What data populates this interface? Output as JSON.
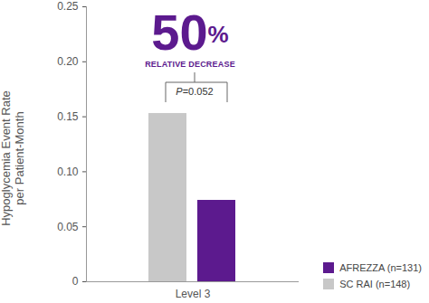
{
  "chart_data": {
    "type": "bar",
    "categories": [
      "Level 3"
    ],
    "series": [
      {
        "name": "SC RAI (n=148)",
        "color": "#c8c8c8",
        "values": [
          0.153
        ]
      },
      {
        "name": "AFREZZA (n=131)",
        "color": "#5c1a8e",
        "values": [
          0.074
        ]
      }
    ],
    "y_label": "Hypoglycemia Event Rate\nper Patient-Month",
    "ylim": [
      0,
      0.25
    ],
    "yticks": [
      0,
      0.05,
      {
        "value": 0.1,
        "label": "0.10"
      },
      0.15,
      {
        "value": 0.2,
        "label": "0.20"
      },
      0.25
    ],
    "annotations": [
      "50%",
      "RELATIVE DECREASE",
      "P=0.052"
    ],
    "legend": "bottom-right"
  }
}
